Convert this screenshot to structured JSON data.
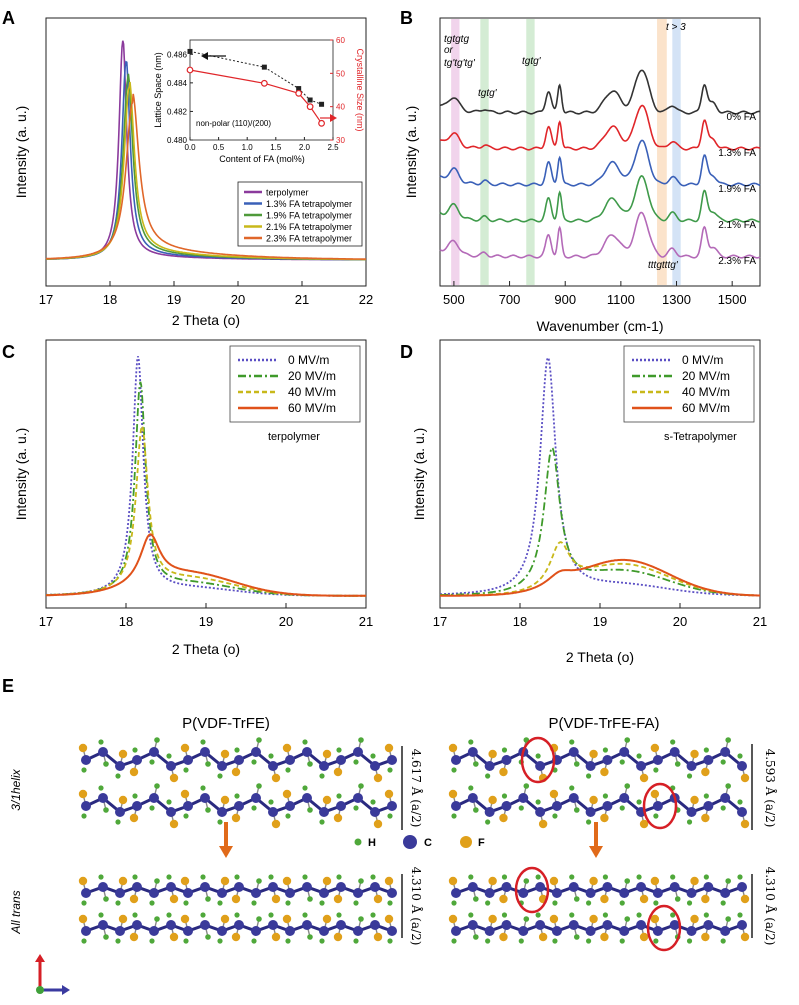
{
  "colors": {
    "terpolymer": "#8b3a9c",
    "fa13": "#3a60b8",
    "fa19": "#4f9a3a",
    "fa21": "#c8b81a",
    "fa23": "#e0672a",
    "black_fit": "#222222",
    "red_fit": "#e0262a",
    "spec0": "#333333",
    "spec13": "#e0262a",
    "spec19": "#3a60b8",
    "spec21": "#3f9a4a",
    "spec23": "#b46ab8",
    "field0": "#5b4fc4",
    "field20": "#3f9a2a",
    "field40": "#c8b81a",
    "field60": "#e0521a",
    "atomC": "#3a3a9a",
    "atomF": "#e0a01a",
    "atomH": "#4fa83a",
    "circle": "#d61f26",
    "arrow": "#e06a1a"
  },
  "chart_data": [
    {
      "panel": "A",
      "type": "line",
      "xlabel": "2 Theta (o)",
      "ylabel": "Intensity (a. u.)",
      "xlim": [
        17,
        22
      ],
      "xticks": [
        "17",
        "18",
        "19",
        "20",
        "21",
        "22"
      ],
      "series": [
        {
          "name": "terpolymer",
          "peak_x": 18.2,
          "peak_height": 1.0,
          "width": 0.12,
          "tail": 0.02
        },
        {
          "name": "1.3% FA tetrapolymer",
          "peak_x": 18.25,
          "peak_height": 0.9,
          "width": 0.13,
          "tail": 0.03
        },
        {
          "name": "1.9% FA tetrapolymer",
          "peak_x": 18.28,
          "peak_height": 0.82,
          "width": 0.15,
          "tail": 0.04
        },
        {
          "name": "2.1% FA tetrapolymer",
          "peak_x": 18.3,
          "peak_height": 0.78,
          "width": 0.16,
          "tail": 0.05
        },
        {
          "name": "2.3% FA tetrapolymer",
          "peak_x": 18.35,
          "peak_height": 0.7,
          "width": 0.2,
          "tail": 0.07
        }
      ],
      "inset": {
        "xlabel": "Content of FA (mol%)",
        "ylabel_left": "Lattice Space (nm)",
        "ylabel_right": "Crystalline Size (nm)",
        "xlim": [
          0,
          2.5
        ],
        "xticks": [
          "0.0",
          "0.5",
          "1.0",
          "1.5",
          "2.0",
          "2.5"
        ],
        "ylim_left": [
          0.48,
          0.487
        ],
        "yticks_left": [
          "0.480",
          "0.482",
          "0.484",
          "0.486"
        ],
        "ylim_right": [
          30,
          60
        ],
        "yticks_right": [
          "30",
          "40",
          "50",
          "60"
        ],
        "annotation": "non-polar (110)/(200)",
        "lattice": {
          "x": [
            0,
            1.3,
            1.9,
            2.1,
            2.3
          ],
          "y": [
            0.4862,
            0.4851,
            0.4836,
            0.4828,
            0.4825
          ]
        },
        "crystal": {
          "x": [
            0,
            1.3,
            1.9,
            2.1,
            2.3
          ],
          "y": [
            51,
            47,
            44,
            40,
            35
          ]
        }
      }
    },
    {
      "panel": "B",
      "type": "line",
      "xlabel": "Wavenumber (cm-1)",
      "ylabel": "Intensity (a. u.)",
      "xlim": [
        450,
        1600
      ],
      "xticks": [
        "500",
        "700",
        "900",
        "1100",
        "1300",
        "1500"
      ],
      "series": [
        {
          "name": "0% FA",
          "offset": 4
        },
        {
          "name": "1.3% FA",
          "offset": 3
        },
        {
          "name": "1.9% FA",
          "offset": 2
        },
        {
          "name": "2.1% FA",
          "offset": 1
        },
        {
          "name": "2.3% FA",
          "offset": 0
        }
      ],
      "bands": [
        {
          "from": 490,
          "to": 520,
          "color": "#e8b8e0"
        },
        {
          "from": 595,
          "to": 625,
          "color": "#b8e0b8"
        },
        {
          "from": 760,
          "to": 790,
          "color": "#b8e0b8"
        },
        {
          "from": 1230,
          "to": 1265,
          "color": "#f8d0a8"
        },
        {
          "from": 1285,
          "to": 1315,
          "color": "#b8d0f0"
        }
      ],
      "annotations": [
        "tgtgtg",
        "or",
        "tg'tg'tg'",
        "tgtg'",
        "tgtg'",
        "t > 3",
        "tttgtttg'"
      ]
    },
    {
      "panel": "C",
      "type": "line",
      "xlabel": "2 Theta (o)",
      "ylabel": "Intensity (a. u.)",
      "xlim": [
        17,
        21
      ],
      "xticks": [
        "17",
        "18",
        "19",
        "20",
        "21"
      ],
      "label": "terpolymer",
      "series": [
        {
          "name": "0 MV/m",
          "peak_x": 18.15,
          "peak_height": 1.0,
          "width": 0.08,
          "hump": 0.03
        },
        {
          "name": "20 MV/m",
          "peak_x": 18.18,
          "peak_height": 0.88,
          "width": 0.08,
          "hump": 0.05
        },
        {
          "name": "40 MV/m",
          "peak_x": 18.2,
          "peak_height": 0.68,
          "width": 0.09,
          "hump": 0.07
        },
        {
          "name": "60 MV/m",
          "peak_x": 18.3,
          "peak_height": 0.2,
          "width": 0.15,
          "hump": 0.09
        }
      ]
    },
    {
      "panel": "D",
      "type": "line",
      "xlabel": "2 Theta (o)",
      "ylabel": "Intensity (a. u.)",
      "xlim": [
        17,
        21
      ],
      "xticks": [
        "17",
        "18",
        "19",
        "20",
        "21"
      ],
      "label": "s-Tetrapolymer",
      "series": [
        {
          "name": "0 MV/m",
          "peak_x": 18.35,
          "peak_height": 1.0,
          "width": 0.12,
          "hump": 0.04
        },
        {
          "name": "20 MV/m",
          "peak_x": 18.4,
          "peak_height": 0.6,
          "width": 0.12,
          "hump": 0.1
        },
        {
          "name": "40 MV/m",
          "peak_x": 18.5,
          "peak_height": 0.18,
          "width": 0.15,
          "hump": 0.13
        },
        {
          "name": "60 MV/m",
          "peak_x": 18.5,
          "peak_height": 0.05,
          "width": 0.2,
          "hump": 0.15
        }
      ]
    }
  ],
  "panel_labels": {
    "a": "A",
    "b": "B",
    "c": "C",
    "d": "D",
    "e": "E"
  },
  "panel_e": {
    "title_left": "P(VDF-TrFE)",
    "title_right": "P(VDF-TrFE-FA)",
    "row1_label": "3/1helix",
    "row2_label": "All trans",
    "dist_left_top": "4.617 Å (a/2)",
    "dist_right_top": "4.593 Å (a/2)",
    "dist_left_bottom": "4.310 Å (a/2)",
    "dist_right_bottom": "4.310 Å (a/2)",
    "legend_h": "H",
    "legend_c": "C",
    "legend_f": "F"
  }
}
